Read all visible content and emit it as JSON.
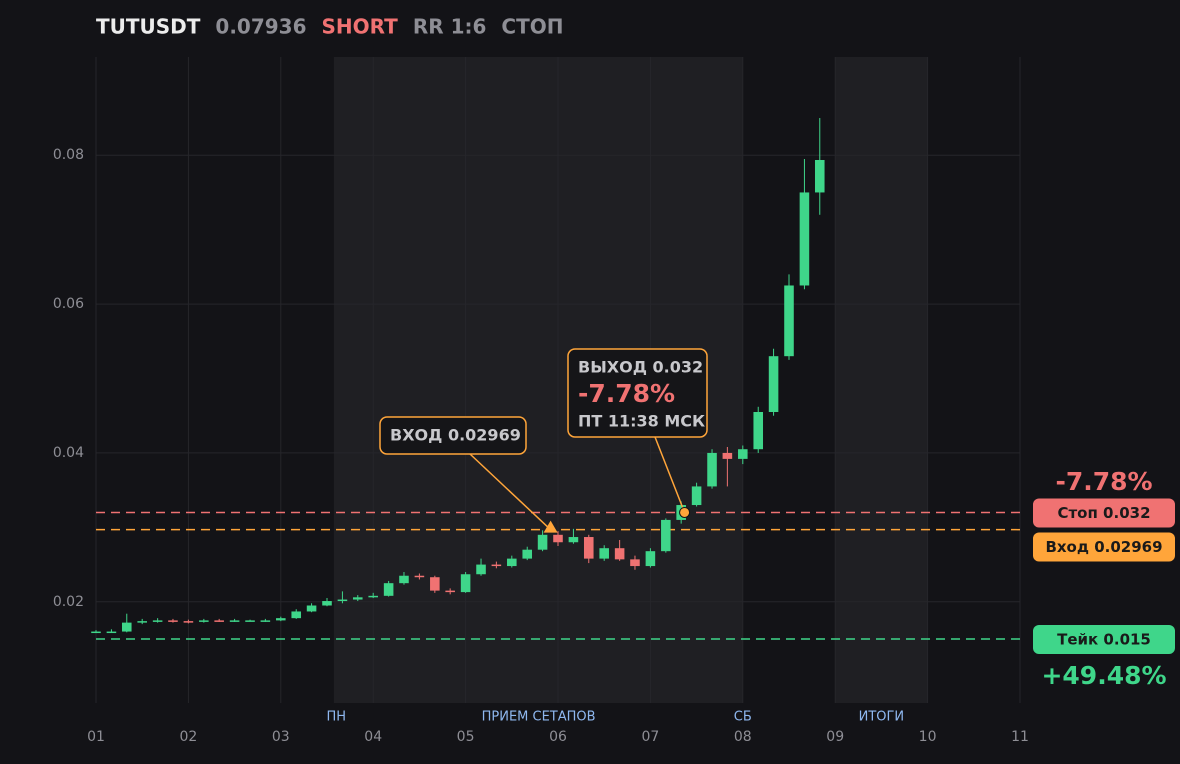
{
  "chart_data": {
    "type": "candlestick",
    "title": "TUTUSDT",
    "last_price": 0.07936,
    "side": "SHORT",
    "rr": "RR 1:6",
    "status": "СТОП",
    "xlim": [
      1,
      11
    ],
    "xticks": [
      {
        "value": 1,
        "label": "01"
      },
      {
        "value": 2,
        "label": "02"
      },
      {
        "value": 3,
        "label": "03"
      },
      {
        "value": 4,
        "label": "04"
      },
      {
        "value": 5,
        "label": "05"
      },
      {
        "value": 6,
        "label": "06"
      },
      {
        "value": 7,
        "label": "07"
      },
      {
        "value": 8,
        "label": "08"
      },
      {
        "value": 9,
        "label": "09"
      },
      {
        "value": 10,
        "label": "10"
      },
      {
        "value": 11,
        "label": "11"
      }
    ],
    "ylim": [
      0.0064,
      0.0932
    ],
    "yticks": [
      0.02,
      0.04,
      0.06,
      0.08
    ],
    "grid": true,
    "up_color": "#3fd68a",
    "down_color": "#f07272",
    "shaded": [
      {
        "from": 3.575,
        "to": 8
      },
      {
        "from": 9,
        "to": 10
      }
    ],
    "sessions": [
      {
        "text": "ПН",
        "x": 3.6
      },
      {
        "text": "ПРИЕМ СЕТАПОВ",
        "x": 5.79
      },
      {
        "text": "СБ",
        "x": 8.0
      },
      {
        "text": "ИТОГИ",
        "x": 9.5
      }
    ],
    "x": [
      1.0,
      1.167,
      1.333,
      1.5,
      1.667,
      1.833,
      2.0,
      2.167,
      2.333,
      2.5,
      2.667,
      2.833,
      3.0,
      3.167,
      3.333,
      3.5,
      3.667,
      3.833,
      4.0,
      4.167,
      4.333,
      4.5,
      4.667,
      4.833,
      5.0,
      5.167,
      5.333,
      5.5,
      5.667,
      5.833,
      6.0,
      6.167,
      6.333,
      6.5,
      6.667,
      6.833,
      7.0,
      7.167,
      7.333,
      7.5,
      7.667,
      7.833,
      8.0,
      8.167,
      8.333,
      8.5,
      8.667,
      8.833
    ],
    "open": [
      0.0159,
      0.016,
      0.016,
      0.0172,
      0.0174,
      0.0175,
      0.0174,
      0.0173,
      0.0175,
      0.0174,
      0.0175,
      0.0175,
      0.0175,
      0.0178,
      0.0187,
      0.0195,
      0.0201,
      0.0203,
      0.0206,
      0.0208,
      0.0225,
      0.0235,
      0.0233,
      0.0215,
      0.0213,
      0.0237,
      0.025,
      0.0248,
      0.0258,
      0.027,
      0.029,
      0.028,
      0.0287,
      0.0258,
      0.0272,
      0.0257,
      0.0248,
      0.0268,
      0.031,
      0.033,
      0.0355,
      0.04,
      0.0392,
      0.0405,
      0.0455,
      0.053,
      0.0625,
      0.075
    ],
    "high": [
      0.0162,
      0.0163,
      0.0184,
      0.0177,
      0.0178,
      0.0177,
      0.0176,
      0.0177,
      0.0177,
      0.0177,
      0.0176,
      0.0177,
      0.018,
      0.019,
      0.0198,
      0.0205,
      0.0214,
      0.0209,
      0.0212,
      0.0228,
      0.024,
      0.0238,
      0.0235,
      0.0218,
      0.024,
      0.0258,
      0.0254,
      0.0262,
      0.0274,
      0.0296,
      0.0295,
      0.0298,
      0.029,
      0.0276,
      0.0283,
      0.0262,
      0.0272,
      0.0312,
      0.0335,
      0.036,
      0.0405,
      0.0408,
      0.041,
      0.0462,
      0.054,
      0.064,
      0.0795,
      0.085
    ],
    "low": [
      0.0158,
      0.0159,
      0.0159,
      0.017,
      0.0172,
      0.0172,
      0.0171,
      0.0172,
      0.0173,
      0.0173,
      0.0174,
      0.0173,
      0.0174,
      0.0177,
      0.0186,
      0.0194,
      0.0198,
      0.0201,
      0.0205,
      0.0207,
      0.0223,
      0.023,
      0.0212,
      0.021,
      0.0212,
      0.0235,
      0.0245,
      0.0246,
      0.0256,
      0.0268,
      0.0275,
      0.0278,
      0.0252,
      0.0255,
      0.0255,
      0.0243,
      0.0246,
      0.0266,
      0.0305,
      0.0328,
      0.0352,
      0.0355,
      0.0385,
      0.04,
      0.045,
      0.0525,
      0.062,
      0.072
    ],
    "close": [
      0.016,
      0.016,
      0.0172,
      0.0174,
      0.0175,
      0.0174,
      0.0173,
      0.0175,
      0.0174,
      0.0175,
      0.0175,
      0.0175,
      0.0178,
      0.0187,
      0.0195,
      0.0201,
      0.0203,
      0.0206,
      0.0208,
      0.0225,
      0.0235,
      0.0233,
      0.0215,
      0.0213,
      0.0237,
      0.025,
      0.0248,
      0.0258,
      0.027,
      0.029,
      0.028,
      0.0287,
      0.0258,
      0.0272,
      0.0257,
      0.0248,
      0.0268,
      0.031,
      0.033,
      0.0355,
      0.04,
      0.0392,
      0.0405,
      0.0455,
      0.053,
      0.0625,
      0.075,
      0.07936
    ],
    "levels": [
      {
        "value": 0.032,
        "label": "Стоп 0.032",
        "color": "#f07272",
        "text_color": "#1a1a1a"
      },
      {
        "value": 0.02969,
        "label": "Вход 0.02969",
        "color": "#ffa53a",
        "text_color": "#1a1a1a"
      },
      {
        "value": 0.015,
        "label": "Тейк 0.015",
        "color": "#3fd68a",
        "text_color": "#1a1a1a"
      }
    ],
    "stop_result": "-7.78%",
    "take_result": "+49.48%",
    "annotations": [
      {
        "x": 5.92,
        "y": 0.02969,
        "marker": "triangle",
        "lines": [
          "ВХОД 0.02969"
        ]
      },
      {
        "x": 7.37,
        "y": 0.032,
        "marker": "circle",
        "lines": [
          "ВЫХОД 0.032",
          "-7.78%",
          "ПТ 11:38 МСК"
        ]
      }
    ]
  }
}
